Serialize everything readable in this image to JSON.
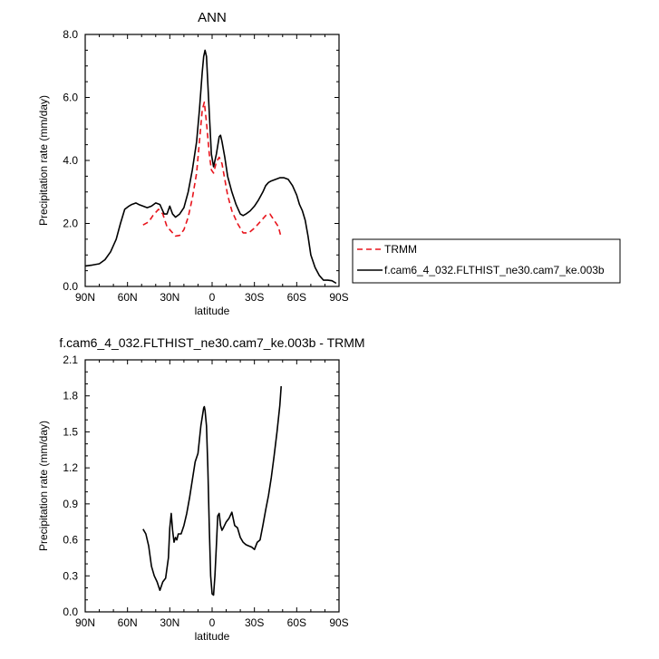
{
  "chart_data": [
    {
      "type": "line",
      "title": "ANN",
      "xlabel": "latitude",
      "ylabel": "Precipitation rate (mm/day)",
      "xlim": [
        -90,
        90
      ],
      "ylim": [
        0,
        8
      ],
      "xticks": [
        -90,
        -60,
        -30,
        0,
        30,
        60,
        90
      ],
      "xtick_labels": [
        "90N",
        "60N",
        "30N",
        "0",
        "30S",
        "60S",
        "90S"
      ],
      "yticks": [
        0,
        2,
        4,
        6,
        8
      ],
      "ytick_labels": [
        "0.0",
        "2.0",
        "4.0",
        "6.0",
        "8.0"
      ],
      "legend": "outside-right",
      "series": [
        {
          "name": "TRMM",
          "color": "#e8141c",
          "dash": true,
          "x": [
            -49,
            -45,
            -42,
            -38,
            -35,
            -32,
            -29,
            -26,
            -23,
            -20,
            -17,
            -14,
            -11,
            -9,
            -7,
            -5.5,
            -4,
            -2,
            -0.5,
            1,
            3,
            5,
            7,
            9,
            11,
            14,
            18,
            22,
            26,
            30,
            34,
            38,
            41,
            44,
            47,
            49
          ],
          "y": [
            1.95,
            2.05,
            2.25,
            2.45,
            2.3,
            1.9,
            1.75,
            1.6,
            1.62,
            1.8,
            2.2,
            2.8,
            3.6,
            4.6,
            5.6,
            5.85,
            5.2,
            4.2,
            3.7,
            3.6,
            3.95,
            4.1,
            3.9,
            3.4,
            2.9,
            2.4,
            2.0,
            1.7,
            1.7,
            1.85,
            2.05,
            2.25,
            2.3,
            2.1,
            1.9,
            1.55
          ]
        },
        {
          "name": "f.cam6_4_032.FLTHIST_ne30.cam7_ke.003b",
          "color": "#000000",
          "dash": false,
          "x": [
            -90,
            -85,
            -80,
            -76,
            -72,
            -68,
            -65,
            -62,
            -59,
            -57,
            -54,
            -52,
            -49,
            -46,
            -43,
            -40,
            -37,
            -34,
            -32,
            -30,
            -28,
            -26,
            -23,
            -20,
            -17,
            -14,
            -11,
            -9,
            -7,
            -6,
            -5,
            -4,
            -2,
            -0.5,
            1,
            3,
            5,
            6,
            7,
            9,
            11,
            14,
            17,
            20,
            22,
            24,
            27,
            30,
            33,
            36,
            38,
            40,
            42,
            45,
            48,
            51,
            54,
            57,
            60,
            62,
            64,
            66,
            68,
            70,
            73,
            76,
            79,
            82,
            85,
            88
          ],
          "y": [
            0.65,
            0.68,
            0.72,
            0.85,
            1.1,
            1.5,
            2.0,
            2.45,
            2.55,
            2.6,
            2.65,
            2.6,
            2.55,
            2.5,
            2.55,
            2.65,
            2.6,
            2.3,
            2.3,
            2.55,
            2.3,
            2.2,
            2.3,
            2.5,
            3.0,
            3.7,
            4.6,
            5.6,
            6.8,
            7.3,
            7.5,
            7.3,
            5.5,
            4.2,
            3.8,
            4.2,
            4.75,
            4.8,
            4.6,
            4.1,
            3.5,
            3.0,
            2.6,
            2.3,
            2.25,
            2.3,
            2.4,
            2.55,
            2.75,
            3.0,
            3.2,
            3.3,
            3.35,
            3.4,
            3.45,
            3.45,
            3.4,
            3.2,
            2.9,
            2.6,
            2.4,
            2.1,
            1.6,
            1.0,
            0.6,
            0.35,
            0.2,
            0.2,
            0.18,
            0.1
          ]
        }
      ]
    },
    {
      "type": "line",
      "title": "f.cam6_4_032.FLTHIST_ne30.cam7_ke.003b - TRMM",
      "xlabel": "latitude",
      "ylabel": "Precipitation rate (mm/day)",
      "xlim": [
        -90,
        90
      ],
      "ylim": [
        0,
        2.1
      ],
      "xticks": [
        -90,
        -60,
        -30,
        0,
        30,
        60,
        90
      ],
      "xtick_labels": [
        "90N",
        "60N",
        "30N",
        "0",
        "30S",
        "60S",
        "90S"
      ],
      "yticks": [
        0,
        0.3,
        0.6,
        0.9,
        1.2,
        1.5,
        1.8,
        2.1
      ],
      "ytick_labels": [
        "0.0",
        "0.3",
        "0.6",
        "0.9",
        "1.2",
        "1.5",
        "1.8",
        "2.1"
      ],
      "series": [
        {
          "name": "f.cam6_4_032.FLTHIST_ne30.cam7_ke.003b - TRMM",
          "color": "#000000",
          "dash": false,
          "x": [
            -49,
            -47,
            -45,
            -43,
            -41,
            -39,
            -37,
            -35,
            -33,
            -31,
            -30,
            -29,
            -28,
            -27,
            -26,
            -25,
            -24,
            -22,
            -20,
            -18,
            -16,
            -14,
            -12,
            -10,
            -8,
            -6,
            -5.5,
            -5,
            -4,
            -3,
            -2,
            -1,
            0,
            1,
            2,
            3,
            4,
            5,
            6,
            7,
            8,
            10,
            12,
            14,
            16,
            18,
            20,
            22,
            24,
            26,
            28,
            30,
            32,
            34,
            36,
            38,
            40,
            42,
            44,
            46,
            48,
            49
          ],
          "y": [
            0.69,
            0.65,
            0.55,
            0.38,
            0.3,
            0.25,
            0.18,
            0.25,
            0.28,
            0.45,
            0.7,
            0.82,
            0.68,
            0.58,
            0.62,
            0.6,
            0.65,
            0.65,
            0.72,
            0.82,
            0.95,
            1.1,
            1.25,
            1.32,
            1.55,
            1.7,
            1.71,
            1.68,
            1.55,
            1.2,
            0.7,
            0.3,
            0.15,
            0.14,
            0.3,
            0.55,
            0.8,
            0.82,
            0.72,
            0.68,
            0.7,
            0.75,
            0.78,
            0.83,
            0.72,
            0.7,
            0.62,
            0.58,
            0.56,
            0.55,
            0.54,
            0.52,
            0.58,
            0.6,
            0.72,
            0.85,
            0.97,
            1.12,
            1.3,
            1.5,
            1.72,
            1.88
          ]
        }
      ]
    }
  ]
}
